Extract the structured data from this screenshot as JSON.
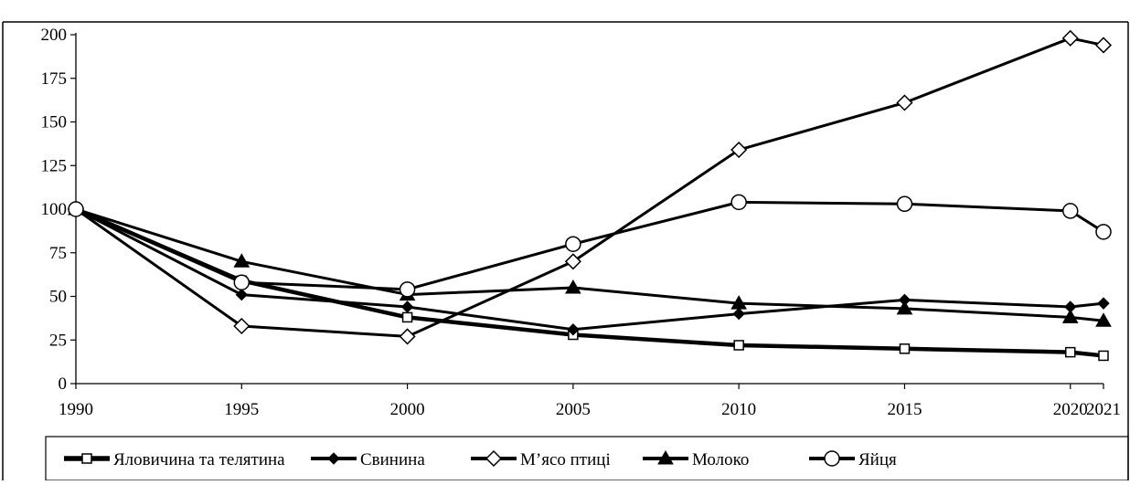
{
  "chart_data": {
    "type": "line",
    "title": "",
    "xlabel": "",
    "ylabel": "",
    "x": [
      1990,
      1995,
      2000,
      2005,
      2010,
      2015,
      2020,
      2021
    ],
    "x_tick_labels": [
      "1990",
      "1995",
      "2000",
      "2005",
      "2010",
      "2015",
      "2020",
      "2021"
    ],
    "y_ticks": [
      0,
      25,
      50,
      75,
      100,
      125,
      150,
      175,
      200
    ],
    "y_tick_labels": [
      "0",
      "25",
      "50",
      "75",
      "100",
      "125",
      "150",
      "175",
      "200"
    ],
    "ylim": [
      0,
      200
    ],
    "grid": false,
    "legend_position": "bottom",
    "series": [
      {
        "name": "Яловичина та телятина",
        "marker": "open-square",
        "values": [
          100,
          59,
          38,
          28,
          22,
          20,
          18,
          16
        ]
      },
      {
        "name": "Свинина",
        "marker": "filled-diamond",
        "values": [
          100,
          51,
          44,
          31,
          40,
          48,
          44,
          46
        ]
      },
      {
        "name": "М’ясо птиці",
        "marker": "open-diamond",
        "values": [
          100,
          33,
          27,
          70,
          134,
          161,
          198,
          194
        ]
      },
      {
        "name": "Молоко",
        "marker": "filled-triangle",
        "values": [
          100,
          70,
          51,
          55,
          46,
          43,
          38,
          36
        ]
      },
      {
        "name": "Яйця",
        "marker": "open-circle",
        "values": [
          100,
          58,
          54,
          80,
          104,
          103,
          99,
          87
        ]
      }
    ],
    "colors": {
      "line": "#000000",
      "open_marker_fill": "#ffffff"
    }
  }
}
